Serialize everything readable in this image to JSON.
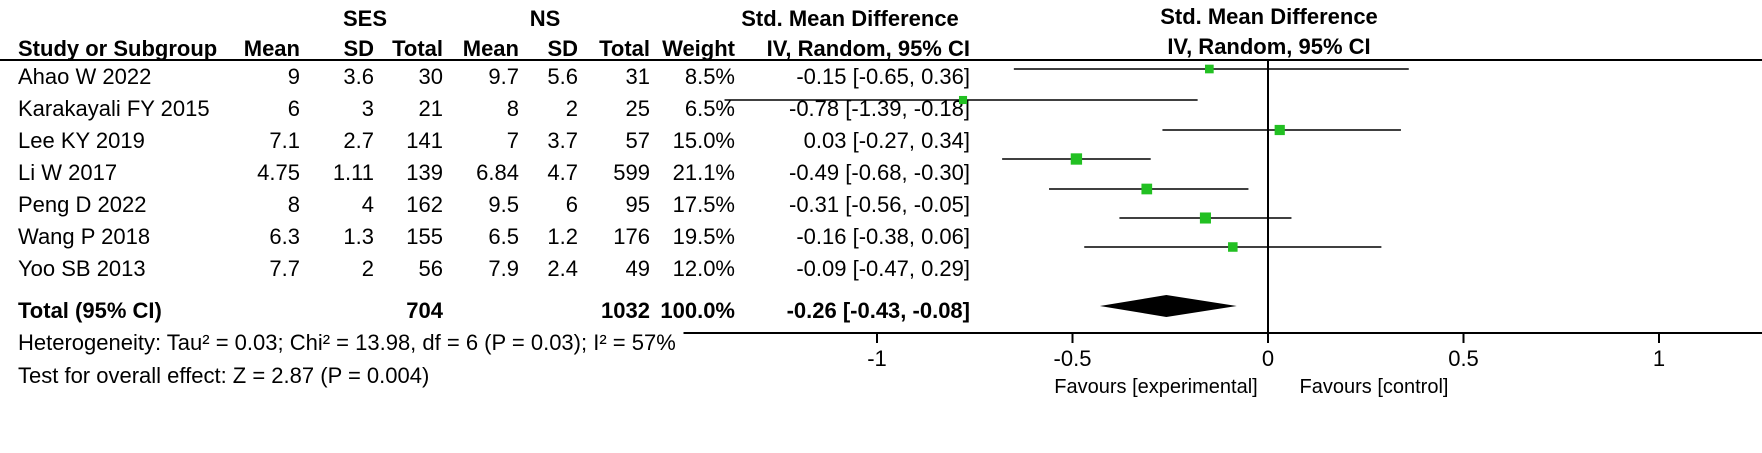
{
  "table": {
    "group1_label": "SES",
    "group2_label": "NS",
    "effect_header_top": "Std. Mean Difference",
    "effect_header_sub": "IV, Random, 95% CI",
    "columns": {
      "study": "Study or Subgroup",
      "mean1": "Mean",
      "sd1": "SD",
      "total1": "Total",
      "mean2": "Mean",
      "sd2": "SD",
      "total2": "Total",
      "weight": "Weight",
      "ci": "IV, Random, 95% CI"
    },
    "rows": [
      {
        "study": "Ahao W 2022",
        "mean1": "9",
        "sd1": "3.6",
        "total1": "30",
        "mean2": "9.7",
        "sd2": "5.6",
        "total2": "31",
        "weight": "8.5%",
        "ci": "-0.15 [-0.65, 0.36]"
      },
      {
        "study": "Karakayali FY 2015",
        "mean1": "6",
        "sd1": "3",
        "total1": "21",
        "mean2": "8",
        "sd2": "2",
        "total2": "25",
        "weight": "6.5%",
        "ci": "-0.78 [-1.39, -0.18]"
      },
      {
        "study": "Lee KY 2019",
        "mean1": "7.1",
        "sd1": "2.7",
        "total1": "141",
        "mean2": "7",
        "sd2": "3.7",
        "total2": "57",
        "weight": "15.0%",
        "ci": "0.03 [-0.27, 0.34]"
      },
      {
        "study": "Li W 2017",
        "mean1": "4.75",
        "sd1": "1.11",
        "total1": "139",
        "mean2": "6.84",
        "sd2": "4.7",
        "total2": "599",
        "weight": "21.1%",
        "ci": "-0.49 [-0.68, -0.30]"
      },
      {
        "study": "Peng D 2022",
        "mean1": "8",
        "sd1": "4",
        "total1": "162",
        "mean2": "9.5",
        "sd2": "6",
        "total2": "95",
        "weight": "17.5%",
        "ci": "-0.31 [-0.56, -0.05]"
      },
      {
        "study": "Wang P 2018",
        "mean1": "6.3",
        "sd1": "1.3",
        "total1": "155",
        "mean2": "6.5",
        "sd2": "1.2",
        "total2": "176",
        "weight": "19.5%",
        "ci": "-0.16 [-0.38, 0.06]"
      },
      {
        "study": "Yoo SB 2013",
        "mean1": "7.7",
        "sd1": "2",
        "total1": "56",
        "mean2": "7.9",
        "sd2": "2.4",
        "total2": "49",
        "weight": "12.0%",
        "ci": "-0.09 [-0.47, 0.29]"
      }
    ],
    "total": {
      "study": "Total (95% CI)",
      "total1": "704",
      "total2": "1032",
      "weight": "100.0%",
      "ci": "-0.26 [-0.43, -0.08]"
    },
    "heterogeneity": "Heterogeneity: Tau² = 0.03; Chi² = 13.98, df = 6 (P = 0.03); I² = 57%",
    "overall_effect": "Test for overall effect: Z = 2.87 (P = 0.004)"
  },
  "chart_data": {
    "type": "forest",
    "title": "Std. Mean Difference",
    "subtitle": "IV, Random, 95% CI",
    "xlim": [
      -1.5,
      1.5
    ],
    "xticks": [
      -1,
      -0.5,
      0,
      0.5,
      1
    ],
    "xtick_labels": [
      "-1",
      "-0.5",
      "0",
      "0.5",
      "1"
    ],
    "favours_left": "Favours [experimental]",
    "favours_right": "Favours [control]",
    "studies": [
      {
        "study": "Ahao W 2022",
        "estimate": -0.15,
        "lower": -0.65,
        "upper": 0.36,
        "weight": 8.5
      },
      {
        "study": "Karakayali FY 2015",
        "estimate": -0.78,
        "lower": -1.39,
        "upper": -0.18,
        "weight": 6.5
      },
      {
        "study": "Lee KY 2019",
        "estimate": 0.03,
        "lower": -0.27,
        "upper": 0.34,
        "weight": 15.0
      },
      {
        "study": "Li W 2017",
        "estimate": -0.49,
        "lower": -0.68,
        "upper": -0.3,
        "weight": 21.1
      },
      {
        "study": "Peng D 2022",
        "estimate": -0.31,
        "lower": -0.56,
        "upper": -0.05,
        "weight": 17.5
      },
      {
        "study": "Wang P 2018",
        "estimate": -0.16,
        "lower": -0.38,
        "upper": 0.06,
        "weight": 19.5
      },
      {
        "study": "Yoo SB 2013",
        "estimate": -0.09,
        "lower": -0.47,
        "upper": 0.29,
        "weight": 12.0
      }
    ],
    "pooled": {
      "estimate": -0.26,
      "lower": -0.43,
      "upper": -0.08
    },
    "marker_color": "#22c022",
    "diamond_color": "#000000"
  }
}
